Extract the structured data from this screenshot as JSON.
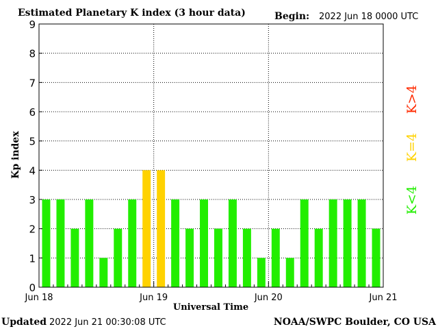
{
  "header": {
    "title": "Estimated Planetary K index (3 hour data)",
    "begin_label": "Begin:",
    "begin_value": "2022 Jun 18 0000 UTC"
  },
  "footer": {
    "updated_label": "Updated",
    "updated_value": "2022 Jun 21 00:30:08 UTC",
    "source": "NOAA/SWPC Boulder, CO USA"
  },
  "legend": {
    "high": "K>4",
    "mid": "K=4",
    "low": "K<4",
    "high_color": "#ff2a00",
    "mid_color": "#ffd200",
    "low_color": "#22ee00"
  },
  "chart_data": {
    "type": "bar",
    "title": "Estimated Planetary K index (3 hour data)",
    "xlabel": "Universal Time",
    "ylabel": "Kp index",
    "ylim": [
      0,
      9
    ],
    "yticks": [
      0,
      1,
      2,
      3,
      4,
      5,
      6,
      7,
      8,
      9
    ],
    "x_tick_labels": [
      "Jun 18",
      "Jun 19",
      "Jun 20",
      "Jun 21"
    ],
    "grid": true,
    "bins_per_day": 8,
    "values": [
      3,
      3,
      2,
      3,
      1,
      2,
      3,
      4,
      4,
      3,
      2,
      3,
      2,
      3,
      2,
      1,
      2,
      1,
      3,
      2,
      3,
      3,
      3,
      2
    ],
    "colors": {
      "below_4": "#22ee00",
      "equal_4": "#ffd200",
      "above_4": "#ff2a00"
    }
  }
}
